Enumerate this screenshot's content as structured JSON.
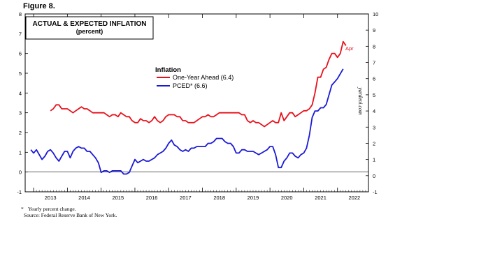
{
  "figure_label": "Figure 8.",
  "chart_data": {
    "type": "line",
    "title": "ACTUAL & EXPECTED INFLATION",
    "subtitle": "(percent)",
    "legend_title": "Inflation",
    "legend_placement": "upper-center",
    "watermark": "yardeni.com",
    "x_ticks": [
      "2013",
      "2014",
      "2015",
      "2016",
      "2017",
      "2018",
      "2019",
      "2020",
      "2021",
      "2022"
    ],
    "y_left": {
      "lim": [
        -1,
        8
      ],
      "ticks": [
        "-1",
        "0",
        "1",
        "2",
        "3",
        "4",
        "5",
        "6",
        "7",
        "8"
      ]
    },
    "y_right": {
      "lim": [
        -1,
        10
      ],
      "ticks": [
        "-1",
        "0",
        "1",
        "2",
        "3",
        "4",
        "5",
        "6",
        "7",
        "8",
        "9",
        "10"
      ]
    },
    "series": [
      {
        "name": "One-Year Ahead (6.4)",
        "axis": "left",
        "color": "#e8101a",
        "end_label": "Apr",
        "points": [
          [
            2013.5,
            3.1
          ],
          [
            2013.583,
            3.2
          ],
          [
            2013.667,
            3.4
          ],
          [
            2013.75,
            3.4
          ],
          [
            2013.833,
            3.2
          ],
          [
            2013.917,
            3.2
          ],
          [
            2014.0,
            3.2
          ],
          [
            2014.083,
            3.1
          ],
          [
            2014.167,
            3.0
          ],
          [
            2014.25,
            3.1
          ],
          [
            2014.333,
            3.2
          ],
          [
            2014.417,
            3.3
          ],
          [
            2014.5,
            3.2
          ],
          [
            2014.583,
            3.2
          ],
          [
            2014.667,
            3.1
          ],
          [
            2014.75,
            3.0
          ],
          [
            2014.833,
            3.0
          ],
          [
            2014.917,
            3.0
          ],
          [
            2015.0,
            3.0
          ],
          [
            2015.083,
            3.0
          ],
          [
            2015.167,
            2.9
          ],
          [
            2015.25,
            2.8
          ],
          [
            2015.333,
            2.9
          ],
          [
            2015.417,
            2.9
          ],
          [
            2015.5,
            2.8
          ],
          [
            2015.583,
            3.0
          ],
          [
            2015.667,
            2.9
          ],
          [
            2015.75,
            2.8
          ],
          [
            2015.833,
            2.8
          ],
          [
            2015.917,
            2.6
          ],
          [
            2016.0,
            2.5
          ],
          [
            2016.083,
            2.5
          ],
          [
            2016.167,
            2.7
          ],
          [
            2016.25,
            2.6
          ],
          [
            2016.333,
            2.6
          ],
          [
            2016.417,
            2.5
          ],
          [
            2016.5,
            2.6
          ],
          [
            2016.583,
            2.8
          ],
          [
            2016.667,
            2.6
          ],
          [
            2016.75,
            2.5
          ],
          [
            2016.833,
            2.6
          ],
          [
            2016.917,
            2.8
          ],
          [
            2017.0,
            2.9
          ],
          [
            2017.083,
            2.9
          ],
          [
            2017.167,
            2.9
          ],
          [
            2017.25,
            2.8
          ],
          [
            2017.333,
            2.8
          ],
          [
            2017.417,
            2.6
          ],
          [
            2017.5,
            2.6
          ],
          [
            2017.583,
            2.5
          ],
          [
            2017.667,
            2.5
          ],
          [
            2017.75,
            2.5
          ],
          [
            2017.833,
            2.6
          ],
          [
            2017.917,
            2.7
          ],
          [
            2018.0,
            2.8
          ],
          [
            2018.083,
            2.8
          ],
          [
            2018.167,
            2.9
          ],
          [
            2018.25,
            2.8
          ],
          [
            2018.333,
            2.8
          ],
          [
            2018.417,
            2.9
          ],
          [
            2018.5,
            3.0
          ],
          [
            2018.583,
            3.0
          ],
          [
            2018.667,
            3.0
          ],
          [
            2018.75,
            3.0
          ],
          [
            2018.833,
            3.0
          ],
          [
            2018.917,
            3.0
          ],
          [
            2019.0,
            3.0
          ],
          [
            2019.083,
            3.0
          ],
          [
            2019.167,
            2.9
          ],
          [
            2019.25,
            2.9
          ],
          [
            2019.333,
            2.6
          ],
          [
            2019.417,
            2.5
          ],
          [
            2019.5,
            2.6
          ],
          [
            2019.583,
            2.5
          ],
          [
            2019.667,
            2.5
          ],
          [
            2019.75,
            2.4
          ],
          [
            2019.833,
            2.3
          ],
          [
            2019.917,
            2.4
          ],
          [
            2020.0,
            2.5
          ],
          [
            2020.083,
            2.6
          ],
          [
            2020.167,
            2.5
          ],
          [
            2020.25,
            2.5
          ],
          [
            2020.333,
            3.0
          ],
          [
            2020.417,
            2.6
          ],
          [
            2020.5,
            2.8
          ],
          [
            2020.583,
            3.0
          ],
          [
            2020.667,
            3.0
          ],
          [
            2020.75,
            2.8
          ],
          [
            2020.833,
            2.9
          ],
          [
            2020.917,
            3.0
          ],
          [
            2021.0,
            3.1
          ],
          [
            2021.083,
            3.1
          ],
          [
            2021.167,
            3.2
          ],
          [
            2021.25,
            3.4
          ],
          [
            2021.333,
            4.0
          ],
          [
            2021.417,
            4.8
          ],
          [
            2021.5,
            4.8
          ],
          [
            2021.583,
            5.2
          ],
          [
            2021.667,
            5.3
          ],
          [
            2021.75,
            5.7
          ],
          [
            2021.833,
            6.0
          ],
          [
            2021.917,
            6.0
          ],
          [
            2022.0,
            5.8
          ],
          [
            2022.083,
            6.0
          ],
          [
            2022.167,
            6.6
          ],
          [
            2022.25,
            6.4
          ]
        ]
      },
      {
        "name": "PCED* (6.6)",
        "axis": "right",
        "color": "#1a1ad6",
        "points": [
          [
            2012.917,
            1.6
          ],
          [
            2013.0,
            1.4
          ],
          [
            2013.083,
            1.6
          ],
          [
            2013.167,
            1.3
          ],
          [
            2013.25,
            1.0
          ],
          [
            2013.333,
            1.2
          ],
          [
            2013.417,
            1.5
          ],
          [
            2013.5,
            1.6
          ],
          [
            2013.583,
            1.4
          ],
          [
            2013.667,
            1.1
          ],
          [
            2013.75,
            0.9
          ],
          [
            2013.833,
            1.2
          ],
          [
            2013.917,
            1.5
          ],
          [
            2014.0,
            1.5
          ],
          [
            2014.083,
            1.1
          ],
          [
            2014.167,
            1.5
          ],
          [
            2014.25,
            1.7
          ],
          [
            2014.333,
            1.8
          ],
          [
            2014.417,
            1.7
          ],
          [
            2014.5,
            1.7
          ],
          [
            2014.583,
            1.5
          ],
          [
            2014.667,
            1.5
          ],
          [
            2014.75,
            1.3
          ],
          [
            2014.833,
            1.1
          ],
          [
            2014.917,
            0.8
          ],
          [
            2015.0,
            0.2
          ],
          [
            2015.083,
            0.3
          ],
          [
            2015.167,
            0.3
          ],
          [
            2015.25,
            0.2
          ],
          [
            2015.333,
            0.3
          ],
          [
            2015.417,
            0.3
          ],
          [
            2015.5,
            0.3
          ],
          [
            2015.583,
            0.3
          ],
          [
            2015.667,
            0.1
          ],
          [
            2015.75,
            0.1
          ],
          [
            2015.833,
            0.2
          ],
          [
            2015.917,
            0.6
          ],
          [
            2016.0,
            1.0
          ],
          [
            2016.083,
            0.8
          ],
          [
            2016.167,
            0.9
          ],
          [
            2016.25,
            1.0
          ],
          [
            2016.333,
            0.9
          ],
          [
            2016.417,
            0.9
          ],
          [
            2016.5,
            1.0
          ],
          [
            2016.583,
            1.1
          ],
          [
            2016.667,
            1.3
          ],
          [
            2016.75,
            1.4
          ],
          [
            2016.833,
            1.5
          ],
          [
            2016.917,
            1.7
          ],
          [
            2017.0,
            2.0
          ],
          [
            2017.083,
            2.2
          ],
          [
            2017.167,
            1.9
          ],
          [
            2017.25,
            1.8
          ],
          [
            2017.333,
            1.6
          ],
          [
            2017.417,
            1.5
          ],
          [
            2017.5,
            1.6
          ],
          [
            2017.583,
            1.5
          ],
          [
            2017.667,
            1.7
          ],
          [
            2017.75,
            1.7
          ],
          [
            2017.833,
            1.8
          ],
          [
            2017.917,
            1.8
          ],
          [
            2018.0,
            1.8
          ],
          [
            2018.083,
            1.8
          ],
          [
            2018.167,
            2.0
          ],
          [
            2018.25,
            2.0
          ],
          [
            2018.333,
            2.1
          ],
          [
            2018.417,
            2.3
          ],
          [
            2018.5,
            2.3
          ],
          [
            2018.583,
            2.3
          ],
          [
            2018.667,
            2.1
          ],
          [
            2018.75,
            2.0
          ],
          [
            2018.833,
            2.0
          ],
          [
            2018.917,
            1.8
          ],
          [
            2019.0,
            1.4
          ],
          [
            2019.083,
            1.4
          ],
          [
            2019.167,
            1.6
          ],
          [
            2019.25,
            1.6
          ],
          [
            2019.333,
            1.5
          ],
          [
            2019.417,
            1.5
          ],
          [
            2019.5,
            1.5
          ],
          [
            2019.583,
            1.4
          ],
          [
            2019.667,
            1.3
          ],
          [
            2019.75,
            1.4
          ],
          [
            2019.833,
            1.5
          ],
          [
            2019.917,
            1.6
          ],
          [
            2020.0,
            1.8
          ],
          [
            2020.083,
            1.8
          ],
          [
            2020.167,
            1.3
          ],
          [
            2020.25,
            0.5
          ],
          [
            2020.333,
            0.5
          ],
          [
            2020.417,
            0.9
          ],
          [
            2020.5,
            1.1
          ],
          [
            2020.583,
            1.4
          ],
          [
            2020.667,
            1.4
          ],
          [
            2020.75,
            1.2
          ],
          [
            2020.833,
            1.1
          ],
          [
            2020.917,
            1.3
          ],
          [
            2021.0,
            1.4
          ],
          [
            2021.083,
            1.7
          ],
          [
            2021.167,
            2.5
          ],
          [
            2021.25,
            3.6
          ],
          [
            2021.333,
            4.0
          ],
          [
            2021.417,
            4.0
          ],
          [
            2021.5,
            4.2
          ],
          [
            2021.583,
            4.2
          ],
          [
            2021.667,
            4.4
          ],
          [
            2021.75,
            5.0
          ],
          [
            2021.833,
            5.6
          ],
          [
            2021.917,
            5.8
          ],
          [
            2022.0,
            6.0
          ],
          [
            2022.083,
            6.3
          ],
          [
            2022.167,
            6.6
          ]
        ]
      }
    ]
  },
  "footnotes": {
    "star": "*",
    "line1": "Yearly percent change.",
    "line2": "Source: Federal Reserve Bank of New York."
  }
}
